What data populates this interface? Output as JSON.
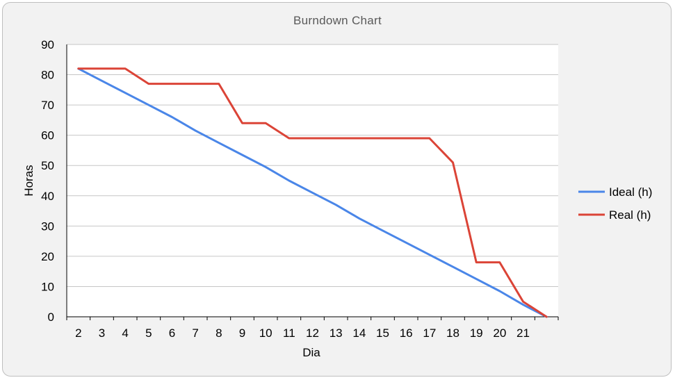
{
  "chart_data": {
    "type": "line",
    "title": "Burndown Chart",
    "xlabel": "Dia",
    "ylabel": "Horas",
    "ylim": [
      0,
      90
    ],
    "yticks": [
      0,
      10,
      20,
      30,
      40,
      50,
      60,
      70,
      80,
      90
    ],
    "categories": [
      "2",
      "3",
      "4",
      "5",
      "6",
      "7",
      "8",
      "9",
      "10",
      "11",
      "12",
      "13",
      "14",
      "15",
      "16",
      "17",
      "18",
      "19",
      "20",
      "21",
      ""
    ],
    "grid": true,
    "legend_position": "right",
    "series": [
      {
        "name": "Ideal (h)",
        "color": "#4a86e8",
        "values": [
          82,
          78,
          74,
          70,
          66,
          61.5,
          57.5,
          53.5,
          49.5,
          45,
          41,
          37,
          32.5,
          28.5,
          24.5,
          20.5,
          16.5,
          12.5,
          8.5,
          4,
          0
        ]
      },
      {
        "name": "Real (h)",
        "color": "#db4437",
        "values": [
          82,
          82,
          82,
          77,
          77,
          77,
          77,
          64,
          64,
          59,
          59,
          59,
          59,
          59,
          59,
          59,
          51,
          18,
          18,
          5,
          0
        ]
      }
    ]
  }
}
